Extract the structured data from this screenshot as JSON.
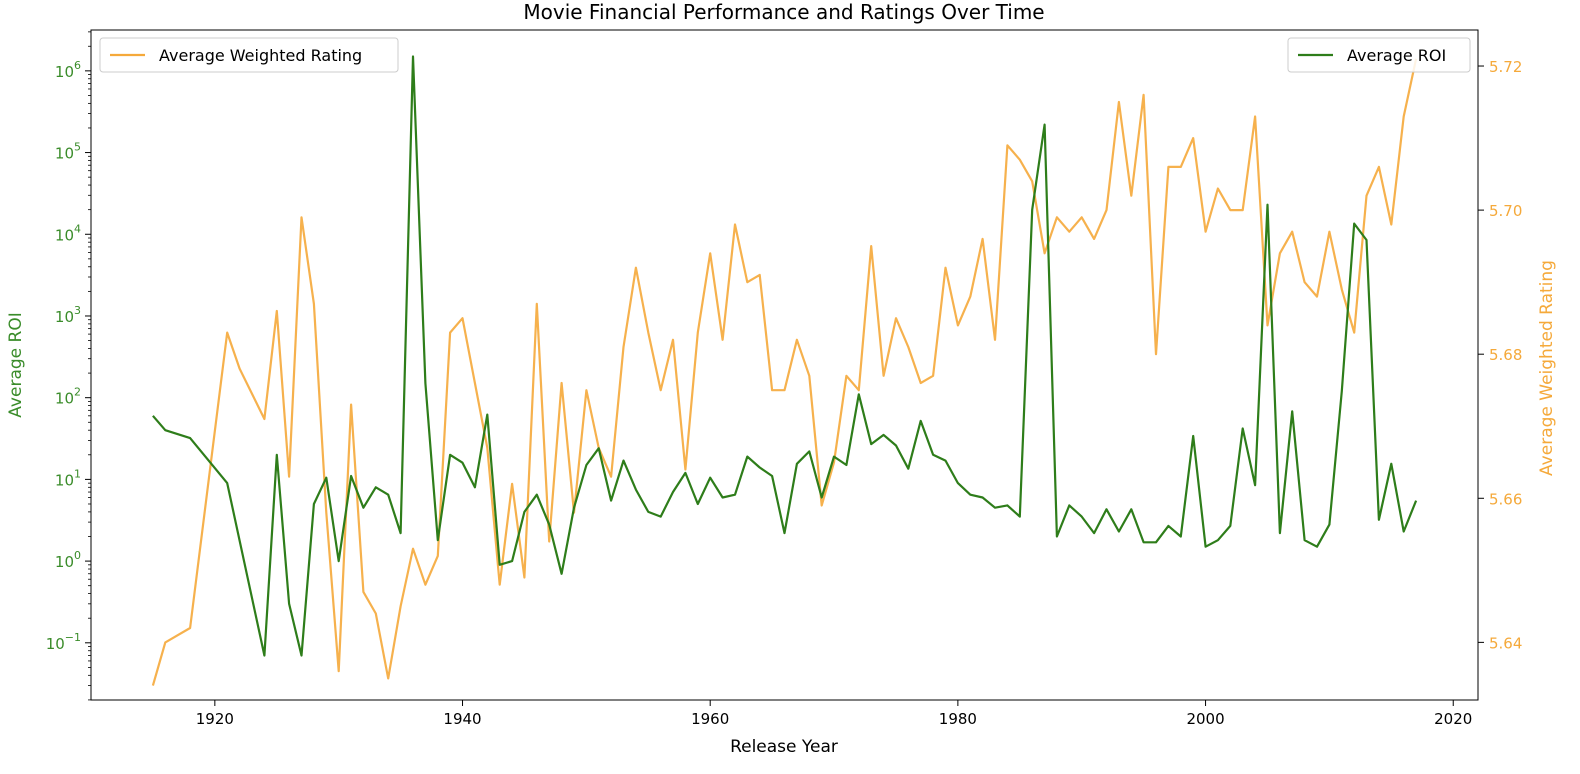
{
  "chart_data": {
    "type": "line",
    "title": "Movie Financial Performance and Ratings Over Time",
    "xlabel": "Release Year",
    "ylabel_left": "Average ROI",
    "ylabel_right": "Average Weighted Rating",
    "xlim": [
      1910,
      2022
    ],
    "x_ticks": [
      1920,
      1940,
      1960,
      1980,
      2000,
      2020
    ],
    "y_left_scale": "log",
    "y_left_lim_exp": [
      -1.7,
      6.5
    ],
    "y_left_tick_exps": [
      -1,
      0,
      1,
      2,
      3,
      4,
      5,
      6
    ],
    "y_right_lim": [
      5.632,
      5.725
    ],
    "y_right_ticks": [
      "5.64",
      "5.66",
      "5.68",
      "5.70",
      "5.72"
    ],
    "grid": false,
    "colors": {
      "roi": "#2e7d1a",
      "rating": "#f5a93a",
      "left_axis": "#3a8c2a",
      "right_axis": "#f5a93a"
    },
    "series": [
      {
        "name": "Average ROI",
        "axis": "left",
        "legend_position": "top-right",
        "x": [
          1915,
          1916,
          1918,
          1921,
          1924,
          1925,
          1926,
          1927,
          1928,
          1929,
          1930,
          1931,
          1932,
          1933,
          1934,
          1935,
          1936,
          1937,
          1938,
          1939,
          1940,
          1941,
          1942,
          1943,
          1944,
          1945,
          1946,
          1947,
          1948,
          1949,
          1950,
          1951,
          1952,
          1953,
          1954,
          1955,
          1956,
          1957,
          1958,
          1959,
          1960,
          1961,
          1962,
          1963,
          1964,
          1965,
          1966,
          1967,
          1968,
          1969,
          1970,
          1971,
          1972,
          1973,
          1974,
          1975,
          1976,
          1977,
          1978,
          1979,
          1980,
          1981,
          1982,
          1983,
          1984,
          1985,
          1986,
          1987,
          1988,
          1989,
          1990,
          1991,
          1992,
          1993,
          1994,
          1995,
          1996,
          1997,
          1998,
          1999,
          2000,
          2001,
          2002,
          2003,
          2004,
          2005,
          2006,
          2007,
          2008,
          2009,
          2010,
          2011,
          2012,
          2013,
          2014,
          2015,
          2016,
          2017
        ],
        "values": [
          60,
          40,
          32,
          9,
          0.07,
          20,
          0.3,
          0.07,
          5,
          10.5,
          1,
          11,
          4.5,
          8,
          6.5,
          2.2,
          1500000,
          150,
          1.8,
          20,
          16,
          8,
          62,
          0.9,
          1,
          4,
          6.5,
          2.8,
          0.7,
          4.5,
          15,
          24,
          5.5,
          17,
          7.5,
          4,
          3.5,
          7,
          12,
          5,
          10.5,
          6,
          6.5,
          19,
          14,
          11,
          2.2,
          15.5,
          22,
          6,
          19,
          15,
          110,
          27,
          35,
          26,
          13.5,
          52,
          20,
          17,
          9,
          6.5,
          6,
          4.5,
          4.8,
          3.5,
          20000,
          220000,
          2,
          4.8,
          3.5,
          2.2,
          4.3,
          2.3,
          4.3,
          1.7,
          1.7,
          2.7,
          2,
          34,
          1.5,
          1.8,
          2.7,
          42,
          8.5,
          23000,
          2.2,
          68,
          1.8,
          1.5,
          2.8,
          120,
          13500,
          8500,
          3.2,
          15.5,
          2.3,
          5.5
        ]
      },
      {
        "name": "Average Weighted Rating",
        "axis": "right",
        "legend_position": "top-left",
        "x": [
          1915,
          1916,
          1918,
          1921,
          1922,
          1924,
          1925,
          1926,
          1927,
          1928,
          1929,
          1930,
          1931,
          1932,
          1933,
          1934,
          1935,
          1936,
          1937,
          1938,
          1939,
          1940,
          1941,
          1942,
          1943,
          1944,
          1945,
          1946,
          1947,
          1948,
          1949,
          1950,
          1951,
          1952,
          1953,
          1954,
          1955,
          1956,
          1957,
          1958,
          1959,
          1960,
          1961,
          1962,
          1963,
          1964,
          1965,
          1966,
          1967,
          1968,
          1969,
          1970,
          1971,
          1972,
          1973,
          1974,
          1975,
          1976,
          1977,
          1978,
          1979,
          1980,
          1981,
          1982,
          1983,
          1984,
          1985,
          1986,
          1987,
          1988,
          1989,
          1990,
          1991,
          1992,
          1993,
          1994,
          1995,
          1996,
          1997,
          1998,
          1999,
          2000,
          2001,
          2002,
          2003,
          2004,
          2005,
          2006,
          2007,
          2008,
          2009,
          2010,
          2011,
          2012,
          2013,
          2014,
          2015,
          2016,
          2017
        ],
        "values": [
          5.634,
          5.64,
          5.642,
          5.683,
          5.678,
          5.671,
          5.686,
          5.663,
          5.699,
          5.687,
          5.658,
          5.636,
          5.673,
          5.647,
          5.644,
          5.635,
          5.645,
          5.653,
          5.648,
          5.652,
          5.683,
          5.685,
          5.676,
          5.667,
          5.648,
          5.662,
          5.649,
          5.687,
          5.654,
          5.676,
          5.658,
          5.675,
          5.667,
          5.663,
          5.681,
          5.692,
          5.683,
          5.675,
          5.682,
          5.664,
          5.683,
          5.694,
          5.682,
          5.698,
          5.69,
          5.691,
          5.675,
          5.675,
          5.682,
          5.677,
          5.659,
          5.665,
          5.677,
          5.675,
          5.695,
          5.677,
          5.685,
          5.681,
          5.676,
          5.677,
          5.692,
          5.684,
          5.688,
          5.696,
          5.682,
          5.709,
          5.707,
          5.704,
          5.694,
          5.699,
          5.697,
          5.699,
          5.696,
          5.7,
          5.715,
          5.702,
          5.716,
          5.68,
          5.706,
          5.706,
          5.71,
          5.697,
          5.703,
          5.7,
          5.7,
          5.713,
          5.684,
          5.694,
          5.697,
          5.69,
          5.688,
          5.697,
          5.689,
          5.683,
          5.702,
          5.706,
          5.698,
          5.713,
          5.721
        ]
      }
    ]
  }
}
